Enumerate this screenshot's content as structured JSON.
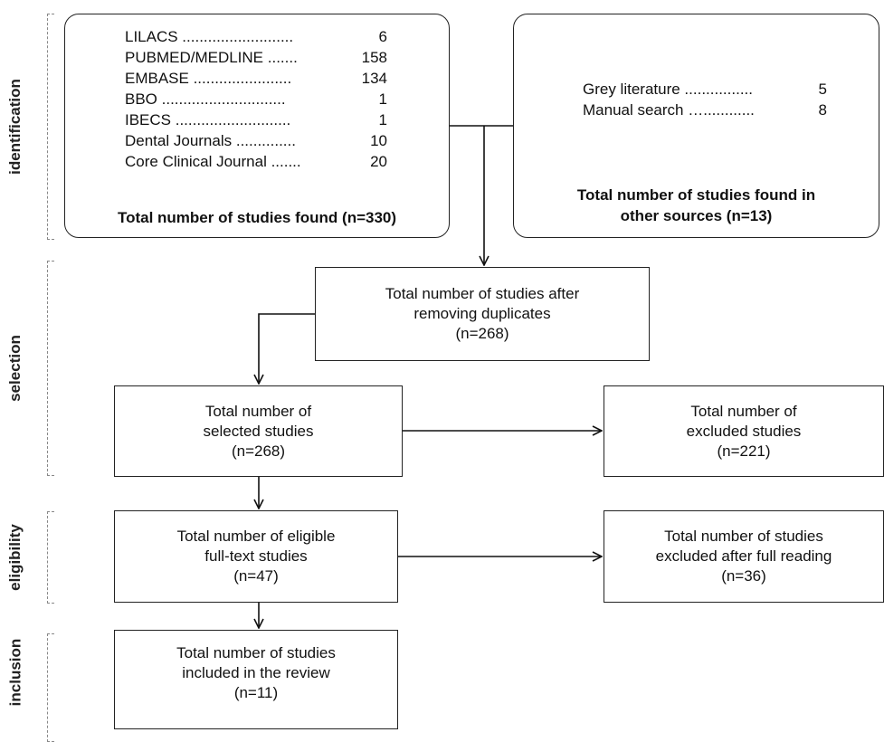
{
  "phases": {
    "identification": "identification",
    "selection": "selection",
    "eligibility": "eligibility",
    "inclusion": "inclusion"
  },
  "databases": {
    "rows": [
      {
        "name": "LILACS ..........................",
        "count": "6"
      },
      {
        "name": "PUBMED/MEDLINE .......",
        "count": "158"
      },
      {
        "name": "EMBASE .......................",
        "count": "134"
      },
      {
        "name": "BBO .............................",
        "count": "1"
      },
      {
        "name": "IBECS ...........................",
        "count": "1"
      },
      {
        "name": "Dental Journals ..............",
        "count": "10"
      },
      {
        "name": "Core Clinical Journal .......",
        "count": "20"
      }
    ],
    "total": "Total number of studies found (n=330)"
  },
  "other_sources": {
    "rows": [
      {
        "name": "Grey literature ................",
        "count": "5"
      },
      {
        "name": "Manual search …............",
        "count": "8"
      }
    ],
    "total_line1": "Total number of studies found in",
    "total_line2": "other sources (n=13)"
  },
  "after_duplicates": {
    "line1": "Total number of studies after",
    "line2": "removing duplicates",
    "line3": "(n=268)"
  },
  "selected": {
    "line1": "Total number of",
    "line2": "selected studies",
    "line3": "(n=268)"
  },
  "excluded": {
    "line1": "Total number of",
    "line2": "excluded studies",
    "line3": "(n=221)"
  },
  "eligible": {
    "line1": "Total number of eligible",
    "line2": "full-text studies",
    "line3": "(n=47)"
  },
  "excluded_full": {
    "line1": "Total number of studies",
    "line2": "excluded after full reading",
    "line3": "(n=36)"
  },
  "included": {
    "line1": "Total number of studies",
    "line2": "included in the review",
    "line3": "(n=11)"
  }
}
